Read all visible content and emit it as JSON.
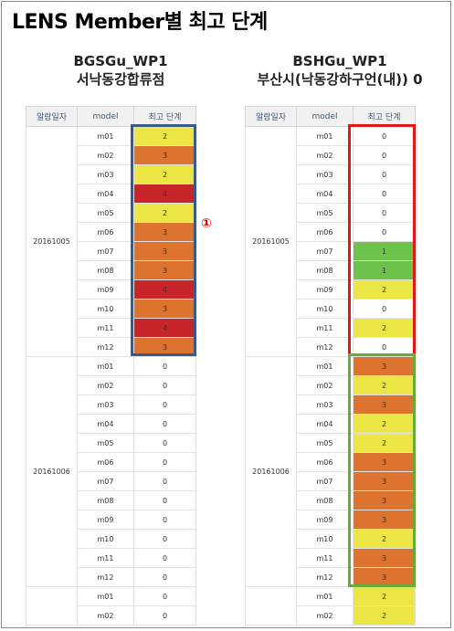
{
  "title": "LENS Member별 최고 단계",
  "marker": "①",
  "headers": [
    "알람일자",
    "model",
    "최고 단계"
  ],
  "level_colors": {
    "0": "#ffffff",
    "1": "#6cc24a",
    "2": "#ebe545",
    "3": "#dc7430",
    "4": "#c8252b"
  },
  "panels": [
    {
      "name": "BGSGu_WP1",
      "location": "서낙동강합류점",
      "groups": [
        {
          "date": "20161005",
          "rows": [
            {
              "model": "m01",
              "level": "2"
            },
            {
              "model": "m02",
              "level": "3"
            },
            {
              "model": "m03",
              "level": "2"
            },
            {
              "model": "m04",
              "level": "4"
            },
            {
              "model": "m05",
              "level": "2"
            },
            {
              "model": "m06",
              "level": "3"
            },
            {
              "model": "m07",
              "level": "3"
            },
            {
              "model": "m08",
              "level": "3"
            },
            {
              "model": "m09",
              "level": "4"
            },
            {
              "model": "m10",
              "level": "3"
            },
            {
              "model": "m11",
              "level": "4"
            },
            {
              "model": "m12",
              "level": "3"
            }
          ]
        },
        {
          "date": "20161006",
          "rows": [
            {
              "model": "m01",
              "level": "0"
            },
            {
              "model": "m02",
              "level": "0"
            },
            {
              "model": "m03",
              "level": "0"
            },
            {
              "model": "m04",
              "level": "0"
            },
            {
              "model": "m05",
              "level": "0"
            },
            {
              "model": "m06",
              "level": "0"
            },
            {
              "model": "m07",
              "level": "0"
            },
            {
              "model": "m08",
              "level": "0"
            },
            {
              "model": "m09",
              "level": "0"
            },
            {
              "model": "m10",
              "level": "0"
            },
            {
              "model": "m11",
              "level": "0"
            },
            {
              "model": "m12",
              "level": "0"
            }
          ]
        },
        {
          "date": "",
          "rows": [
            {
              "model": "m01",
              "level": "0"
            },
            {
              "model": "m02",
              "level": "0"
            }
          ]
        }
      ]
    },
    {
      "name": "BSHGu_WP1",
      "location": "부산시(낙동강하구언(내)) 0",
      "groups": [
        {
          "date": "20161005",
          "rows": [
            {
              "model": "m01",
              "level": "0"
            },
            {
              "model": "m02",
              "level": "0"
            },
            {
              "model": "m03",
              "level": "0"
            },
            {
              "model": "m04",
              "level": "0"
            },
            {
              "model": "m05",
              "level": "0"
            },
            {
              "model": "m06",
              "level": "0"
            },
            {
              "model": "m07",
              "level": "1"
            },
            {
              "model": "m08",
              "level": "1"
            },
            {
              "model": "m09",
              "level": "2"
            },
            {
              "model": "m10",
              "level": "0"
            },
            {
              "model": "m11",
              "level": "2"
            },
            {
              "model": "m12",
              "level": "0"
            }
          ]
        },
        {
          "date": "20161006",
          "rows": [
            {
              "model": "m01",
              "level": "3"
            },
            {
              "model": "m02",
              "level": "2"
            },
            {
              "model": "m03",
              "level": "3"
            },
            {
              "model": "m04",
              "level": "2"
            },
            {
              "model": "m05",
              "level": "2"
            },
            {
              "model": "m06",
              "level": "3"
            },
            {
              "model": "m07",
              "level": "3"
            },
            {
              "model": "m08",
              "level": "3"
            },
            {
              "model": "m09",
              "level": "3"
            },
            {
              "model": "m10",
              "level": "2"
            },
            {
              "model": "m11",
              "level": "3"
            },
            {
              "model": "m12",
              "level": "3"
            }
          ]
        },
        {
          "date": "",
          "rows": [
            {
              "model": "m01",
              "level": "2"
            },
            {
              "model": "m02",
              "level": "2"
            }
          ]
        }
      ]
    }
  ]
}
